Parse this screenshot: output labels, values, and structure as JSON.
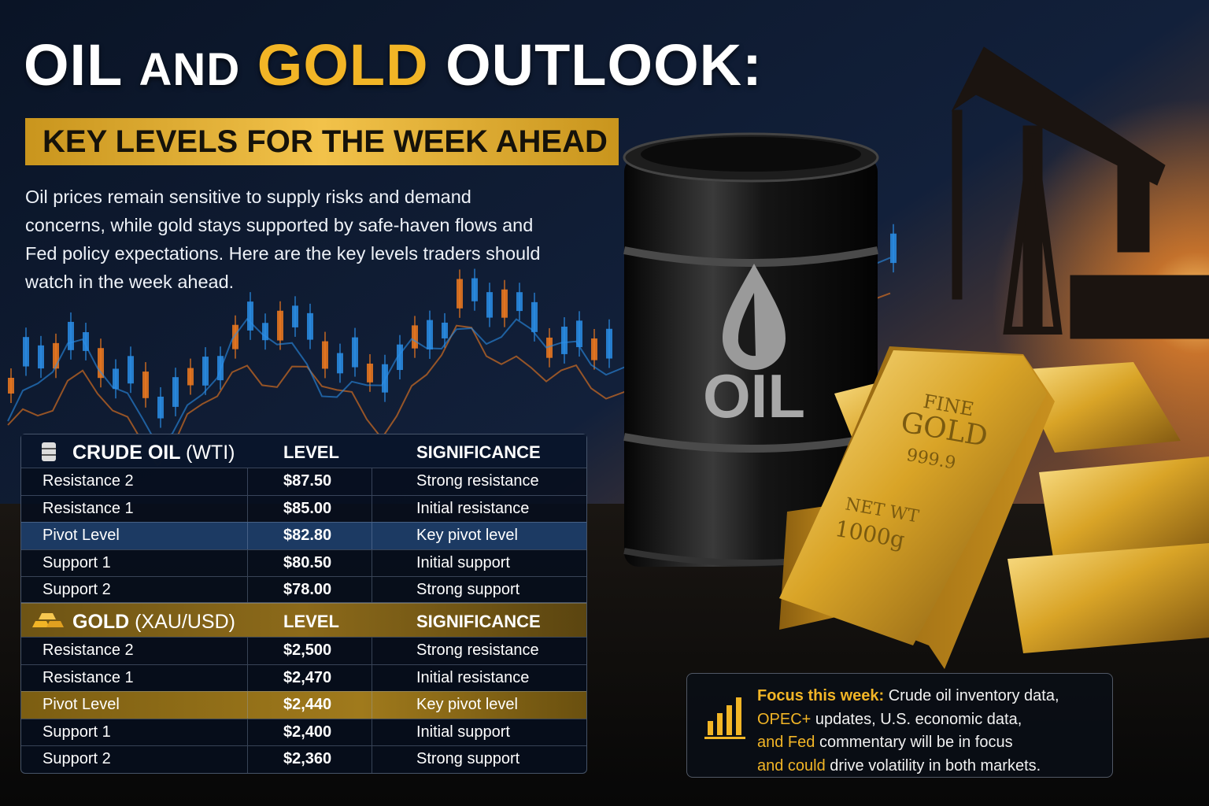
{
  "header": {
    "title_parts": [
      "OIL",
      "AND",
      "GOLD",
      "OUTLOOK:"
    ],
    "subtitle": "KEY LEVELS FOR THE WEEK AHEAD"
  },
  "intro": "Oil prices remain sensitive to supply risks and demand concerns, while gold stays supported by safe-haven flows and Fed policy expectations. Here are the key levels traders should watch in the week ahead.",
  "tables": [
    {
      "title": "CRUDE OIL",
      "title_suffix": "(WTI)",
      "columns": [
        "LEVEL",
        "SIGNIFICANCE"
      ],
      "rows": [
        [
          "Resistance 2",
          "$87.50",
          "Strong resistance"
        ],
        [
          "Resistance 1",
          "$85.00",
          "Initial resistance"
        ],
        [
          "Pivot Level",
          "$82.80",
          "Key pivot level"
        ],
        [
          "Support 1",
          "$80.50",
          "Initial support"
        ],
        [
          "Support 2",
          "$78.00",
          "Strong support"
        ]
      ]
    },
    {
      "title": "GOLD",
      "title_suffix": "(XAU/USD)",
      "columns": [
        "LEVEL",
        "SIGNIFICANCE"
      ],
      "rows": [
        [
          "Resistance 2",
          "$2,500",
          "Strong resistance"
        ],
        [
          "Resistance 1",
          "$2,470",
          "Initial resistance"
        ],
        [
          "Pivot Level",
          "$2,440",
          "Key pivot level"
        ],
        [
          "Support 1",
          "$2,400",
          "Initial support"
        ],
        [
          "Support 2",
          "$2,360",
          "Strong support"
        ]
      ]
    }
  ],
  "focus": {
    "parts": [
      "Focus this week:",
      " Crude oil inventory data,",
      "OPEC+",
      " updates, U.S. economic data,",
      "and Fed",
      " commentary will be in focus",
      "and could",
      " drive volatility in both markets."
    ]
  },
  "image_labels": {
    "barrel": "OIL",
    "bar_fine": "FINE",
    "bar_gold": "GOLD",
    "bar_purity": "999.9",
    "bar_weight_label": "NET WT",
    "bar_weight": "1000g"
  }
}
